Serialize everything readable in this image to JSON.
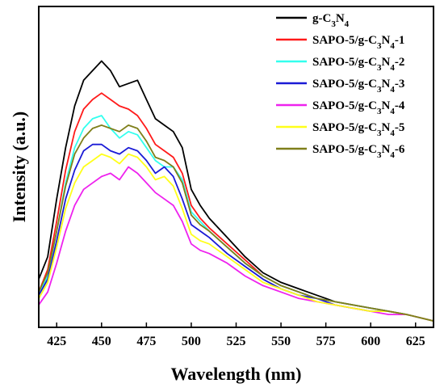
{
  "chart_data": {
    "type": "line",
    "title": "",
    "xlabel": "Wavelength (nm)",
    "ylabel": "Intensity (a.u.)",
    "xlim": [
      415,
      635
    ],
    "ylim": [
      0,
      1.0
    ],
    "y_tick_labels": false,
    "x_ticks": [
      425,
      450,
      475,
      500,
      525,
      550,
      575,
      600,
      625
    ],
    "x_tick_labels": [
      "425",
      "450",
      "475",
      "500",
      "525",
      "550",
      "575",
      "600",
      "625"
    ],
    "grid": false,
    "legend_position": "top-right",
    "series": [
      {
        "name": "g-C3N4",
        "legend": {
          "base": "g-C",
          "sub1": "3",
          "mid": "N",
          "sub2": "4",
          "suffix": ""
        },
        "color": "#000000",
        "x": [
          415,
          420,
          425,
          430,
          435,
          440,
          445,
          450,
          455,
          460,
          465,
          470,
          475,
          480,
          485,
          490,
          495,
          500,
          505,
          510,
          520,
          530,
          540,
          550,
          560,
          570,
          580,
          590,
          600,
          610,
          620,
          635
        ],
        "y": [
          0.15,
          0.22,
          0.4,
          0.56,
          0.69,
          0.77,
          0.8,
          0.83,
          0.8,
          0.75,
          0.76,
          0.77,
          0.71,
          0.65,
          0.63,
          0.61,
          0.56,
          0.43,
          0.38,
          0.34,
          0.28,
          0.22,
          0.17,
          0.14,
          0.12,
          0.1,
          0.08,
          0.07,
          0.06,
          0.05,
          0.04,
          0.02
        ]
      },
      {
        "name": "SAPO-5/g-C3N4-1",
        "legend": {
          "base": "SAPO-5/g-C",
          "sub1": "3",
          "mid": "N",
          "sub2": "4",
          "suffix": "-1"
        },
        "color": "#ff1a1a",
        "x": [
          415,
          420,
          425,
          430,
          435,
          440,
          445,
          450,
          455,
          460,
          465,
          470,
          475,
          480,
          485,
          490,
          495,
          500,
          505,
          510,
          520,
          530,
          540,
          550,
          560,
          570,
          580,
          590,
          600,
          610,
          620,
          635
        ],
        "y": [
          0.11,
          0.18,
          0.33,
          0.49,
          0.61,
          0.68,
          0.71,
          0.73,
          0.71,
          0.69,
          0.68,
          0.66,
          0.62,
          0.57,
          0.55,
          0.53,
          0.48,
          0.38,
          0.34,
          0.31,
          0.26,
          0.21,
          0.16,
          0.13,
          0.11,
          0.09,
          0.08,
          0.07,
          0.06,
          0.05,
          0.04,
          0.02
        ]
      },
      {
        "name": "SAPO-5/g-C3N4-2",
        "legend": {
          "base": "SAPO-5/g-C",
          "sub1": "3",
          "mid": "N",
          "sub2": "4",
          "suffix": "-2"
        },
        "color": "#33ffee",
        "x": [
          415,
          420,
          425,
          430,
          435,
          440,
          445,
          450,
          455,
          460,
          465,
          470,
          475,
          480,
          485,
          490,
          495,
          500,
          505,
          510,
          520,
          530,
          540,
          550,
          560,
          570,
          580,
          590,
          600,
          610,
          620,
          635
        ],
        "y": [
          0.1,
          0.16,
          0.3,
          0.45,
          0.56,
          0.62,
          0.65,
          0.66,
          0.62,
          0.59,
          0.61,
          0.6,
          0.56,
          0.52,
          0.5,
          0.5,
          0.46,
          0.36,
          0.33,
          0.3,
          0.25,
          0.2,
          0.16,
          0.13,
          0.11,
          0.09,
          0.08,
          0.07,
          0.06,
          0.05,
          0.04,
          0.02
        ]
      },
      {
        "name": "SAPO-5/g-C3N4-3",
        "legend": {
          "base": "SAPO-5/g-C",
          "sub1": "3",
          "mid": "N",
          "sub2": "4",
          "suffix": "-3"
        },
        "color": "#1a1ad6",
        "x": [
          415,
          420,
          425,
          430,
          435,
          440,
          445,
          450,
          455,
          460,
          465,
          470,
          475,
          480,
          485,
          490,
          495,
          500,
          505,
          510,
          520,
          530,
          540,
          550,
          560,
          570,
          580,
          590,
          600,
          610,
          620,
          635
        ],
        "y": [
          0.1,
          0.15,
          0.27,
          0.4,
          0.49,
          0.55,
          0.57,
          0.57,
          0.55,
          0.54,
          0.56,
          0.55,
          0.52,
          0.48,
          0.5,
          0.47,
          0.4,
          0.32,
          0.3,
          0.28,
          0.23,
          0.19,
          0.15,
          0.12,
          0.1,
          0.09,
          0.07,
          0.06,
          0.05,
          0.05,
          0.04,
          0.02
        ]
      },
      {
        "name": "SAPO-5/g-C3N4-4",
        "legend": {
          "base": "SAPO-5/g-C",
          "sub1": "3",
          "mid": "N",
          "sub2": "4",
          "suffix": "-4"
        },
        "color": "#ee22ee",
        "x": [
          415,
          420,
          425,
          430,
          435,
          440,
          445,
          450,
          455,
          460,
          465,
          470,
          475,
          480,
          485,
          490,
          495,
          500,
          505,
          510,
          520,
          530,
          540,
          550,
          560,
          570,
          580,
          590,
          600,
          610,
          620,
          635
        ],
        "y": [
          0.07,
          0.11,
          0.2,
          0.3,
          0.38,
          0.43,
          0.45,
          0.47,
          0.48,
          0.46,
          0.5,
          0.48,
          0.45,
          0.42,
          0.4,
          0.38,
          0.33,
          0.26,
          0.24,
          0.23,
          0.2,
          0.16,
          0.13,
          0.11,
          0.09,
          0.08,
          0.07,
          0.06,
          0.05,
          0.04,
          0.04,
          0.02
        ]
      },
      {
        "name": "SAPO-5/g-C3N4-5",
        "legend": {
          "base": "SAPO-5/g-C",
          "sub1": "3",
          "mid": "N",
          "sub2": "4",
          "suffix": "-5"
        },
        "color": "#ffff1a",
        "x": [
          415,
          420,
          425,
          430,
          435,
          440,
          445,
          450,
          455,
          460,
          465,
          470,
          475,
          480,
          485,
          490,
          495,
          500,
          505,
          510,
          520,
          530,
          540,
          550,
          560,
          570,
          580,
          590,
          600,
          610,
          620,
          635
        ],
        "y": [
          0.09,
          0.14,
          0.25,
          0.37,
          0.45,
          0.5,
          0.52,
          0.54,
          0.53,
          0.51,
          0.54,
          0.53,
          0.5,
          0.46,
          0.47,
          0.44,
          0.37,
          0.29,
          0.27,
          0.26,
          0.22,
          0.18,
          0.14,
          0.12,
          0.1,
          0.08,
          0.07,
          0.06,
          0.05,
          0.05,
          0.04,
          0.02
        ]
      },
      {
        "name": "SAPO-5/g-C3N4-6",
        "legend": {
          "base": "SAPO-5/g-C",
          "sub1": "3",
          "mid": "N",
          "sub2": "4",
          "suffix": "-6"
        },
        "color": "#7f7f1a",
        "x": [
          415,
          420,
          425,
          430,
          435,
          440,
          445,
          450,
          455,
          460,
          465,
          470,
          475,
          480,
          485,
          490,
          495,
          500,
          505,
          510,
          520,
          530,
          540,
          550,
          560,
          570,
          580,
          590,
          600,
          610,
          620,
          635
        ],
        "y": [
          0.11,
          0.17,
          0.3,
          0.44,
          0.54,
          0.59,
          0.62,
          0.63,
          0.62,
          0.61,
          0.63,
          0.62,
          0.58,
          0.53,
          0.52,
          0.5,
          0.45,
          0.35,
          0.32,
          0.3,
          0.25,
          0.2,
          0.16,
          0.13,
          0.11,
          0.09,
          0.08,
          0.07,
          0.06,
          0.05,
          0.04,
          0.02
        ]
      }
    ]
  }
}
